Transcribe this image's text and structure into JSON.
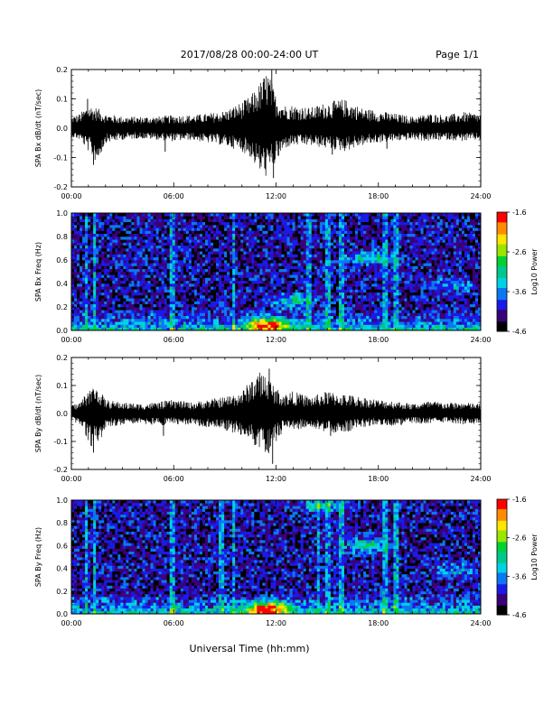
{
  "header": {
    "title": "2017/08/28  00:00-24:00 UT",
    "page": "Page 1/1"
  },
  "xlabel": "Universal Time (hh:mm)",
  "time_ticks": [
    "00:00",
    "06:00",
    "12:00",
    "18:00",
    "24:00"
  ],
  "colorbar": {
    "label": "Log10 Power",
    "tick_labels": [
      "-1.6",
      "-2.6",
      "-3.6",
      "-4.6"
    ],
    "range": [
      -4.6,
      -1.6
    ],
    "colors": [
      "#000000",
      "#3a007a",
      "#1a1ae6",
      "#0a78f0",
      "#00d2e6",
      "#00c88c",
      "#00d232",
      "#9be600",
      "#ffe600",
      "#ff8c00",
      "#ff0000"
    ]
  },
  "chart_data": [
    {
      "type": "line",
      "ylabel": "SPA Bx dB/dt (nT/sec)",
      "xlim": [
        0,
        24
      ],
      "ylim": [
        -0.2,
        0.2
      ],
      "y_tick_labels": [
        "0.2",
        "0.1",
        "0.0",
        "-0.1",
        "-0.2"
      ],
      "y_tick_values": [
        0.2,
        0.1,
        0.0,
        -0.1,
        -0.2
      ],
      "x_unit": "hours UT",
      "envelope": {
        "x": [
          0,
          0.5,
          1.0,
          1.5,
          2,
          3,
          4,
          5,
          6,
          7,
          8,
          9,
          10,
          10.5,
          11,
          11.5,
          12,
          12.5,
          13,
          14,
          15,
          16,
          17,
          18,
          19,
          20,
          21,
          22,
          23,
          24
        ],
        "max": [
          0.04,
          0.05,
          0.08,
          0.07,
          0.05,
          0.04,
          0.04,
          0.04,
          0.045,
          0.045,
          0.05,
          0.06,
          0.09,
          0.11,
          0.15,
          0.2,
          0.11,
          0.08,
          0.08,
          0.07,
          0.09,
          0.1,
          0.07,
          0.06,
          0.05,
          0.04,
          0.05,
          0.045,
          0.055,
          0.05
        ],
        "min": [
          -0.03,
          -0.04,
          -0.08,
          -0.12,
          -0.05,
          -0.04,
          -0.035,
          -0.04,
          -0.045,
          -0.04,
          -0.05,
          -0.06,
          -0.08,
          -0.1,
          -0.15,
          -0.17,
          -0.12,
          -0.07,
          -0.06,
          -0.06,
          -0.07,
          -0.08,
          -0.06,
          -0.05,
          -0.045,
          -0.04,
          -0.045,
          -0.04,
          -0.045,
          -0.04
        ]
      },
      "spikes": [
        {
          "x": 0.95,
          "y": 0.1
        },
        {
          "x": 1.3,
          "y": -0.125
        },
        {
          "x": 5.5,
          "y": -0.08
        },
        {
          "x": 11.75,
          "y": 0.2
        },
        {
          "x": 11.85,
          "y": -0.17
        },
        {
          "x": 15.3,
          "y": -0.09
        },
        {
          "x": 18.5,
          "y": -0.07
        }
      ]
    },
    {
      "type": "heatmap",
      "ylabel": "SPA Bx Freq (Hz)",
      "xlim": [
        0,
        24
      ],
      "ylim": [
        0,
        1.0
      ],
      "y_tick_labels": [
        "1.0",
        "0.8",
        "0.6",
        "0.4",
        "0.2",
        "0.0"
      ],
      "y_tick_values": [
        1.0,
        0.8,
        0.6,
        0.4,
        0.2,
        0.0
      ],
      "z_range": [
        -4.6,
        -1.6
      ],
      "z_label": "Log10 Power",
      "background_log10_power": -4.1,
      "low_frequency_band": {
        "freq_max": 0.08,
        "log10_power": -3.0
      },
      "vertical_streaks_hours": [
        0.9,
        1.35,
        5.9,
        9.5,
        13.9,
        15.0,
        15.8,
        18.4,
        19.0
      ],
      "features": [
        {
          "t": 17.5,
          "f": 0.62,
          "log10_power": -3.1
        },
        {
          "t": 11.5,
          "f": 0.05,
          "log10_power": -2.2
        },
        {
          "t": 13.0,
          "f": 0.25,
          "log10_power": -3.2
        },
        {
          "t": 22.3,
          "f": 0.38,
          "log10_power": -3.5
        }
      ]
    },
    {
      "type": "line",
      "ylabel": "SPA By dB/dt (nT/sec)",
      "xlim": [
        0,
        24
      ],
      "ylim": [
        -0.2,
        0.2
      ],
      "y_tick_labels": [
        "0.2",
        "0.1",
        "0.0",
        "-0.1",
        "-0.2"
      ],
      "y_tick_values": [
        0.2,
        0.1,
        0.0,
        -0.1,
        -0.2
      ],
      "x_unit": "hours UT",
      "envelope": {
        "x": [
          0,
          0.5,
          1.0,
          1.5,
          2,
          3,
          4,
          5,
          6,
          7,
          8,
          9,
          10,
          10.5,
          11,
          11.5,
          12,
          12.5,
          13,
          14,
          15,
          16,
          17,
          18,
          19,
          20,
          21,
          22,
          23,
          24
        ],
        "max": [
          0.03,
          0.04,
          0.09,
          0.1,
          0.05,
          0.04,
          0.035,
          0.04,
          0.05,
          0.04,
          0.05,
          0.06,
          0.08,
          0.12,
          0.15,
          0.14,
          0.09,
          0.07,
          0.08,
          0.06,
          0.08,
          0.07,
          0.06,
          0.05,
          0.045,
          0.035,
          0.045,
          0.04,
          0.04,
          0.035
        ],
        "min": [
          -0.03,
          -0.04,
          -0.11,
          -0.13,
          -0.05,
          -0.04,
          -0.035,
          -0.045,
          -0.04,
          -0.04,
          -0.05,
          -0.06,
          -0.08,
          -0.1,
          -0.13,
          -0.17,
          -0.1,
          -0.06,
          -0.06,
          -0.05,
          -0.07,
          -0.07,
          -0.05,
          -0.04,
          -0.045,
          -0.035,
          -0.04,
          -0.03,
          -0.04,
          -0.035
        ]
      },
      "spikes": [
        {
          "x": 1.3,
          "y": -0.14
        },
        {
          "x": 5.4,
          "y": -0.08
        },
        {
          "x": 11.8,
          "y": -0.18
        },
        {
          "x": 11.6,
          "y": 0.16
        },
        {
          "x": 15.2,
          "y": -0.08
        }
      ]
    },
    {
      "type": "heatmap",
      "ylabel": "SPA By Freq (Hz)",
      "xlim": [
        0,
        24
      ],
      "ylim": [
        0,
        1.0
      ],
      "y_tick_labels": [
        "1.0",
        "0.8",
        "0.6",
        "0.4",
        "0.2",
        "0.0"
      ],
      "y_tick_values": [
        1.0,
        0.8,
        0.6,
        0.4,
        0.2,
        0.0
      ],
      "z_range": [
        -4.6,
        -1.6
      ],
      "z_label": "Log10 Power",
      "background_log10_power": -4.1,
      "low_frequency_band": {
        "freq_max": 0.08,
        "log10_power": -2.9
      },
      "vertical_streaks_hours": [
        0.9,
        1.35,
        5.9,
        8.8,
        9.5,
        14.5,
        15.0,
        15.8,
        18.4,
        19.0
      ],
      "features": [
        {
          "t": 17.3,
          "f": 0.6,
          "log10_power": -3.1
        },
        {
          "t": 11.5,
          "f": 0.05,
          "log10_power": -2.1
        },
        {
          "t": 14.8,
          "f": 0.95,
          "log10_power": -3.2
        },
        {
          "t": 22.5,
          "f": 0.38,
          "log10_power": -3.5
        }
      ]
    }
  ]
}
